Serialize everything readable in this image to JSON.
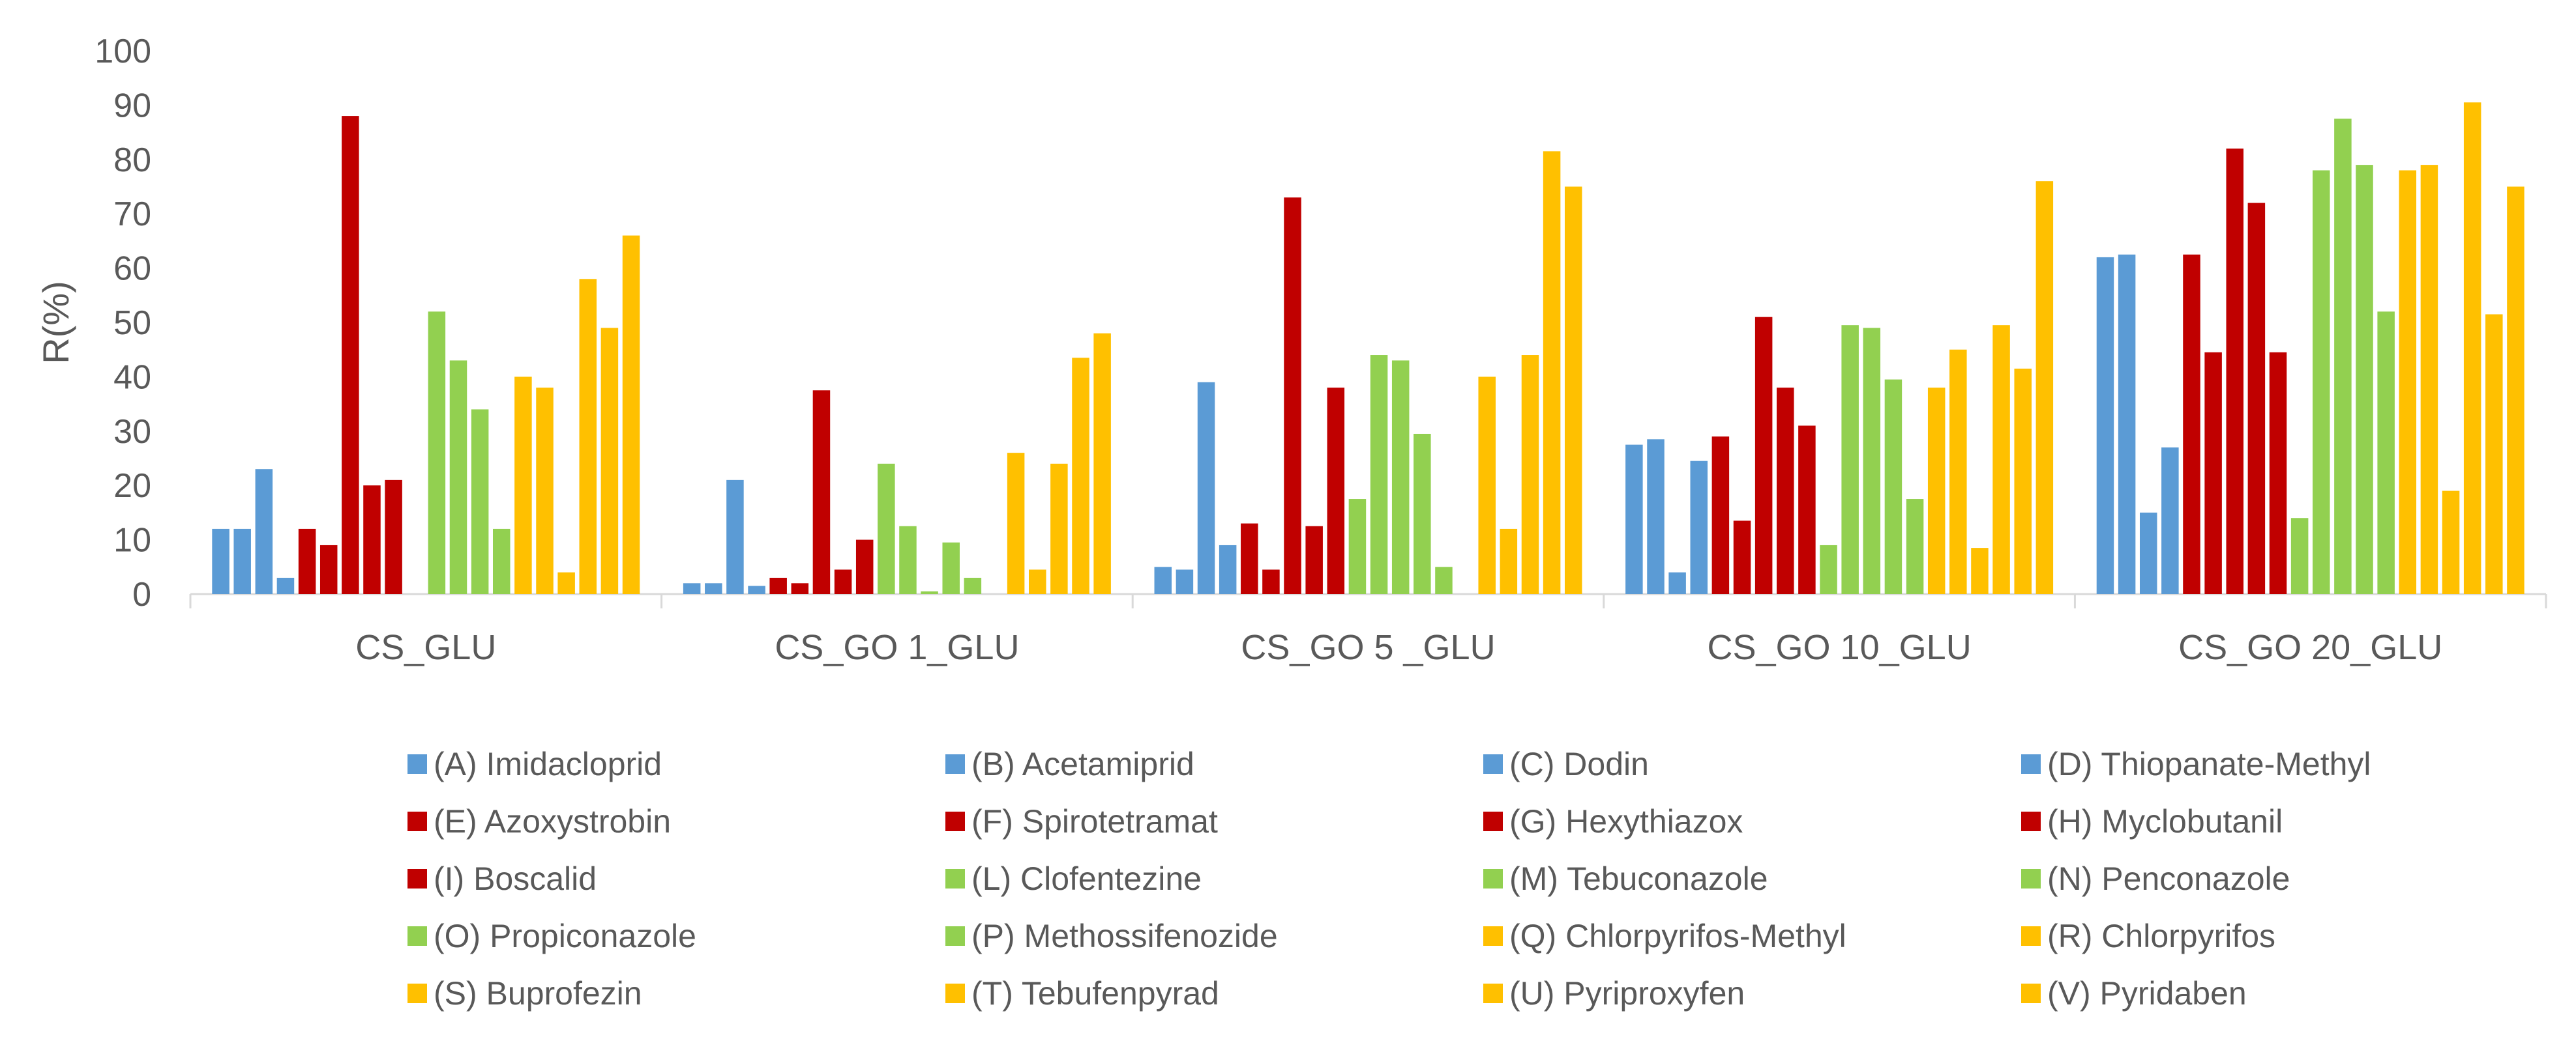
{
  "chart_data": {
    "type": "bar",
    "title": "",
    "xlabel": "",
    "ylabel": "R(%)",
    "ylim": [
      0,
      100
    ],
    "yticks": [
      0,
      10,
      20,
      30,
      40,
      50,
      60,
      70,
      80,
      90,
      100
    ],
    "grid": false,
    "legend_position": "bottom",
    "categories": [
      "CS_GLU",
      "CS_GO 1_GLU",
      "CS_GO 5 _GLU",
      "CS_GO 10_GLU",
      "CS_GO 20_GLU"
    ],
    "colors": {
      "blue": "#5B9BD5",
      "red": "#C00000",
      "green": "#92D050",
      "yellow": "#FFC000"
    },
    "series": [
      {
        "name": "(A) Imidacloprid",
        "color": "#5B9BD5",
        "values": [
          12,
          2,
          5,
          27.5,
          62
        ]
      },
      {
        "name": "(B) Acetamiprid",
        "color": "#5B9BD5",
        "values": [
          12,
          2,
          4.5,
          28.5,
          62.5
        ]
      },
      {
        "name": "(C) Dodin",
        "color": "#5B9BD5",
        "values": [
          23,
          21,
          39,
          4,
          15
        ]
      },
      {
        "name": "(D) Thiopanate-Methyl",
        "color": "#5B9BD5",
        "values": [
          3,
          1.5,
          9,
          24.5,
          27
        ]
      },
      {
        "name": "(E) Azoxystrobin",
        "color": "#C00000",
        "values": [
          12,
          3,
          13,
          29,
          62.5
        ]
      },
      {
        "name": "(F) Spirotetramat",
        "color": "#C00000",
        "values": [
          9,
          2,
          4.5,
          13.5,
          44.5
        ]
      },
      {
        "name": "(G) Hexythiazox",
        "color": "#C00000",
        "values": [
          88,
          37.5,
          73,
          51,
          82
        ]
      },
      {
        "name": "(H) Myclobutanil",
        "color": "#C00000",
        "values": [
          20,
          4.5,
          12.5,
          38,
          72
        ]
      },
      {
        "name": "(I) Boscalid",
        "color": "#C00000",
        "values": [
          21,
          10,
          38,
          31,
          44.5
        ]
      },
      {
        "name": "(L) Clofentezine",
        "color": "#92D050",
        "values": [
          0,
          24,
          17.5,
          9,
          14
        ]
      },
      {
        "name": "(M) Tebuconazole",
        "color": "#92D050",
        "values": [
          52,
          12.5,
          44,
          49.5,
          78
        ]
      },
      {
        "name": "(N) Penconazole",
        "color": "#92D050",
        "values": [
          43,
          0.5,
          43,
          49,
          87.5
        ]
      },
      {
        "name": "(O) Propiconazole",
        "color": "#92D050",
        "values": [
          34,
          9.5,
          29.5,
          39.5,
          79
        ]
      },
      {
        "name": "(P) Methossifenozide",
        "color": "#92D050",
        "values": [
          12,
          3,
          5,
          17.5,
          52
        ]
      },
      {
        "name": "(Q) Chlorpyrifos-Methyl",
        "color": "#FFC000",
        "values": [
          40,
          0,
          0,
          38,
          78
        ]
      },
      {
        "name": "(R) Chlorpyrifos",
        "color": "#FFC000",
        "values": [
          38,
          26,
          40,
          45,
          79
        ]
      },
      {
        "name": "(S) Buprofezin",
        "color": "#FFC000",
        "values": [
          4,
          4.5,
          12,
          8.5,
          19
        ]
      },
      {
        "name": "(T) Tebufenpyrad",
        "color": "#FFC000",
        "values": [
          58,
          24,
          44,
          49.5,
          90.5
        ]
      },
      {
        "name": "(U) Pyriproxyfen",
        "color": "#FFC000",
        "values": [
          49,
          43.5,
          81.5,
          41.5,
          51.5
        ]
      },
      {
        "name": "(V) Pyridaben",
        "color": "#FFC000",
        "values": [
          66,
          48,
          75,
          76,
          75
        ]
      }
    ]
  }
}
